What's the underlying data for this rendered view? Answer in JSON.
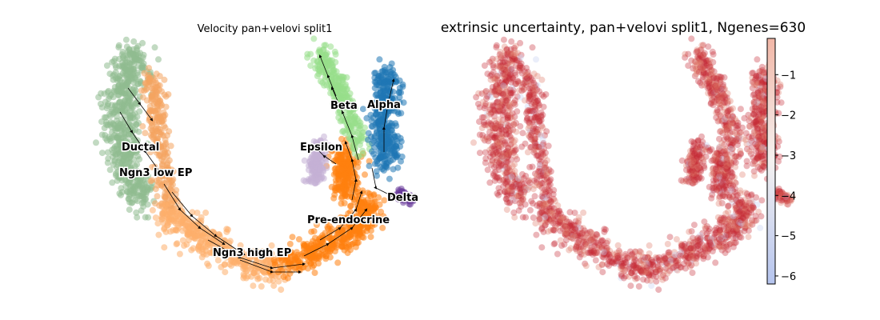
{
  "chart_data": [
    {
      "type": "scatter",
      "subtype": "velocity-stream-embedding",
      "title": "Velocity pan+velovi split1",
      "xlabel": "",
      "ylabel": "",
      "axes_visible": false,
      "clusters": [
        {
          "name": "Ductal",
          "color": "#8fbc8f"
        },
        {
          "name": "Ngn3 low EP",
          "color": "#f4a460"
        },
        {
          "name": "Ngn3 high EP",
          "color": "#fdae6b"
        },
        {
          "name": "Pre-endocrine",
          "color": "#ff7f0e"
        },
        {
          "name": "Beta",
          "color": "#98df8a"
        },
        {
          "name": "Alpha",
          "color": "#1f77b4"
        },
        {
          "name": "Delta",
          "color": "#6a3d9a"
        },
        {
          "name": "Epsilon",
          "color": "#c5b0d5"
        }
      ],
      "labels": [
        "Ductal",
        "Ngn3 low EP",
        "Ngn3 high EP",
        "Pre-endocrine",
        "Beta",
        "Alpha",
        "Delta",
        "Epsilon"
      ]
    },
    {
      "type": "scatter",
      "subtype": "embedding-colored-by-value",
      "title": "extrinsic uncertainty, pan+velovi split1, Ngenes=630",
      "axes_visible": false,
      "colorbar": {
        "label": "",
        "range": [
          -6.2,
          -0.1
        ],
        "ticks": [
          "−1",
          "−2",
          "−3",
          "−4",
          "−5",
          "−6"
        ],
        "tick_values": [
          -1,
          -2,
          -3,
          -4,
          -5,
          -6
        ],
        "colormap": "coolwarm",
        "color_low": "#b5c4ee",
        "color_mid": "#f2f2f2",
        "color_high": "#f2b7a7"
      },
      "point_color": "#c62b36",
      "typical_value": -1.2
    }
  ]
}
